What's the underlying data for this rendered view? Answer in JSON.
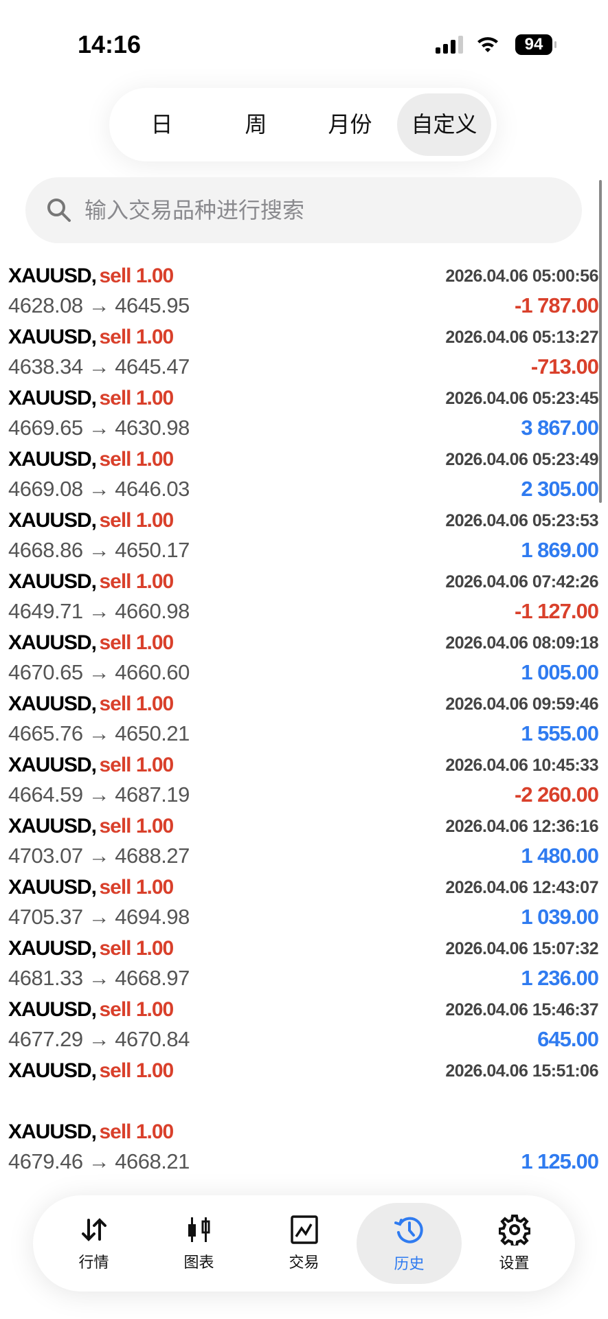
{
  "status_bar": {
    "time": "14:16",
    "battery": "94"
  },
  "period_tabs": [
    {
      "label": "日",
      "active": false
    },
    {
      "label": "周",
      "active": false
    },
    {
      "label": "月份",
      "active": false
    },
    {
      "label": "自定义",
      "active": true
    }
  ],
  "search": {
    "placeholder": "输入交易品种进行搜索"
  },
  "colors": {
    "loss": "#d9402b",
    "profit": "#2f7bf0",
    "active_tab": "#2f7bf0"
  },
  "trades": [
    {
      "symbol": "XAUUSD,",
      "side": "sell 1.00",
      "time": "2026.04.06 05:00:56",
      "prices": "4628.08 → 4645.95",
      "profit": "-1 787.00",
      "positive": false
    },
    {
      "symbol": "XAUUSD,",
      "side": "sell 1.00",
      "time": "2026.04.06 05:13:27",
      "prices": "4638.34 → 4645.47",
      "profit": "-713.00",
      "positive": false
    },
    {
      "symbol": "XAUUSD,",
      "side": "sell 1.00",
      "time": "2026.04.06 05:23:45",
      "prices": "4669.65 → 4630.98",
      "profit": "3 867.00",
      "positive": true
    },
    {
      "symbol": "XAUUSD,",
      "side": "sell 1.00",
      "time": "2026.04.06 05:23:49",
      "prices": "4669.08 → 4646.03",
      "profit": "2 305.00",
      "positive": true
    },
    {
      "symbol": "XAUUSD,",
      "side": "sell 1.00",
      "time": "2026.04.06 05:23:53",
      "prices": "4668.86 → 4650.17",
      "profit": "1 869.00",
      "positive": true
    },
    {
      "symbol": "XAUUSD,",
      "side": "sell 1.00",
      "time": "2026.04.06 07:42:26",
      "prices": "4649.71 → 4660.98",
      "profit": "-1 127.00",
      "positive": false
    },
    {
      "symbol": "XAUUSD,",
      "side": "sell 1.00",
      "time": "2026.04.06 08:09:18",
      "prices": "4670.65 → 4660.60",
      "profit": "1 005.00",
      "positive": true
    },
    {
      "symbol": "XAUUSD,",
      "side": "sell 1.00",
      "time": "2026.04.06 09:59:46",
      "prices": "4665.76 → 4650.21",
      "profit": "1 555.00",
      "positive": true
    },
    {
      "symbol": "XAUUSD,",
      "side": "sell 1.00",
      "time": "2026.04.06 10:45:33",
      "prices": "4664.59 → 4687.19",
      "profit": "-2 260.00",
      "positive": false
    },
    {
      "symbol": "XAUUSD,",
      "side": "sell 1.00",
      "time": "2026.04.06 12:36:16",
      "prices": "4703.07 → 4688.27",
      "profit": "1 480.00",
      "positive": true
    },
    {
      "symbol": "XAUUSD,",
      "side": "sell 1.00",
      "time": "2026.04.06 12:43:07",
      "prices": "4705.37 → 4694.98",
      "profit": "1 039.00",
      "positive": true
    },
    {
      "symbol": "XAUUSD,",
      "side": "sell 1.00",
      "time": "2026.04.06 15:07:32",
      "prices": "4681.33 → 4668.97",
      "profit": "1 236.00",
      "positive": true
    },
    {
      "symbol": "XAUUSD,",
      "side": "sell 1.00",
      "time": "2026.04.06 15:46:37",
      "prices": "4677.29 → 4670.84",
      "profit": "645.00",
      "positive": true
    },
    {
      "symbol": "XAUUSD,",
      "side": "sell 1.00",
      "time": "2026.04.06 15:51:06",
      "prices": "",
      "profit": "",
      "positive": true
    },
    {
      "symbol": "XAUUSD,",
      "side": "sell 1.00",
      "time": "",
      "prices": "4679.46 → 4668.21",
      "profit": "1 125.00",
      "positive": true
    }
  ],
  "bottom_nav": [
    {
      "label": "行情",
      "icon": "arrows-up-down-icon",
      "active": false
    },
    {
      "label": "图表",
      "icon": "candlestick-icon",
      "active": false
    },
    {
      "label": "交易",
      "icon": "trade-chart-icon",
      "active": false
    },
    {
      "label": "历史",
      "icon": "history-icon",
      "active": true
    },
    {
      "label": "设置",
      "icon": "gear-icon",
      "active": false
    }
  ]
}
